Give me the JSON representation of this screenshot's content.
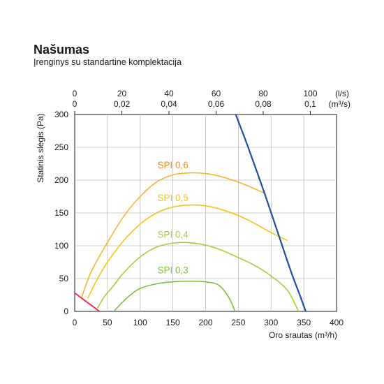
{
  "title": "Našumas",
  "subtitle": "Įrenginys su standartine komplektacija",
  "chart_data": {
    "type": "line",
    "xlabel": "Oro srautas (m³/h)",
    "ylabel": "Statinis slėgis (Pa)",
    "xlim": [
      0,
      400
    ],
    "ylim": [
      0,
      300
    ],
    "x_ticks": [
      0,
      50,
      100,
      150,
      200,
      250,
      300,
      350,
      400
    ],
    "y_ticks": [
      0,
      50,
      100,
      150,
      200,
      250,
      300
    ],
    "grid": true,
    "top_axis": {
      "ls_ticks": [
        "0",
        "20",
        "40",
        "60",
        "80",
        "100"
      ],
      "m3s_ticks": [
        "0",
        "0,02",
        "0,04",
        "0,06",
        "0,08",
        "0,1"
      ],
      "ls_values": [
        0,
        20,
        40,
        60,
        80,
        100
      ],
      "ls_unit": "(l/s)",
      "m3s_unit": "(m³/s)"
    },
    "series": [
      {
        "name": "SPI 0,6",
        "color": "#f2b632",
        "points": [
          [
            10,
            20
          ],
          [
            25,
            60
          ],
          [
            50,
            105
          ],
          [
            75,
            145
          ],
          [
            100,
            175
          ],
          [
            125,
            197
          ],
          [
            150,
            208
          ],
          [
            175,
            211
          ],
          [
            200,
            210
          ],
          [
            225,
            205
          ],
          [
            250,
            197
          ],
          [
            270,
            189
          ],
          [
            290,
            180
          ]
        ]
      },
      {
        "name": "SPI 0,5",
        "color": "#f0c419",
        "points": [
          [
            20,
            20
          ],
          [
            35,
            50
          ],
          [
            50,
            75
          ],
          [
            75,
            108
          ],
          [
            100,
            133
          ],
          [
            125,
            150
          ],
          [
            150,
            159
          ],
          [
            175,
            162
          ],
          [
            200,
            161
          ],
          [
            225,
            155
          ],
          [
            250,
            146
          ],
          [
            275,
            134
          ],
          [
            300,
            120
          ],
          [
            325,
            108
          ]
        ]
      },
      {
        "name": "SPI 0,4",
        "color": "#a8cc3a",
        "points": [
          [
            35,
            5
          ],
          [
            45,
            22
          ],
          [
            60,
            40
          ],
          [
            75,
            59
          ],
          [
            100,
            83
          ],
          [
            125,
            98
          ],
          [
            150,
            104
          ],
          [
            170,
            105
          ],
          [
            200,
            101
          ],
          [
            225,
            93
          ],
          [
            250,
            82
          ],
          [
            275,
            70
          ],
          [
            300,
            54
          ],
          [
            325,
            32
          ],
          [
            342,
            0
          ]
        ]
      },
      {
        "name": "SPI 0,3",
        "color": "#7bbf3a",
        "points": [
          [
            60,
            0
          ],
          [
            70,
            11
          ],
          [
            85,
            25
          ],
          [
            100,
            35
          ],
          [
            125,
            42
          ],
          [
            150,
            45
          ],
          [
            175,
            46
          ],
          [
            200,
            45
          ],
          [
            220,
            40
          ],
          [
            235,
            22
          ],
          [
            245,
            0
          ]
        ]
      },
      {
        "name": "",
        "color": "#1f4fa0",
        "points": [
          [
            246,
            300
          ],
          [
            265,
            250
          ],
          [
            290,
            180
          ],
          [
            312,
            115
          ],
          [
            330,
            62
          ],
          [
            345,
            22
          ],
          [
            353,
            0
          ]
        ]
      },
      {
        "name": "",
        "color": "#e8344e",
        "points": [
          [
            0,
            28
          ],
          [
            38,
            0
          ]
        ]
      }
    ]
  }
}
